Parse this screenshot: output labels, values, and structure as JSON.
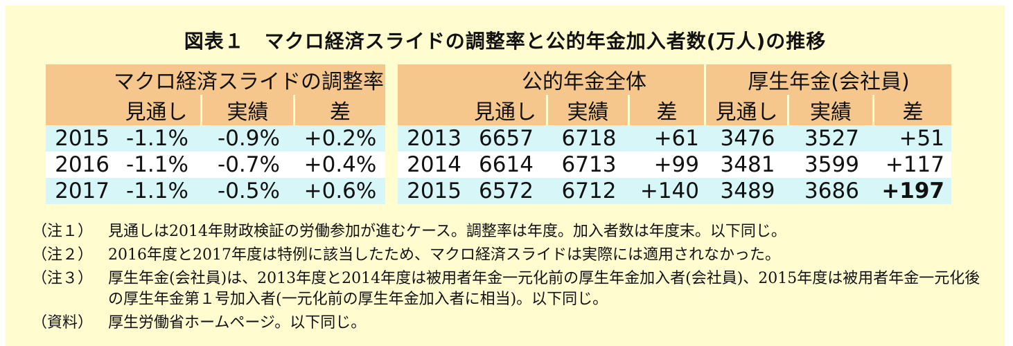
{
  "title": "図表１　マクロ経済スライドの調整率と公的年金加入者数(万人)の推移",
  "left_table": {
    "group_header": "マクロ経済スライドの調整率",
    "columns": [
      "見通し",
      "実績",
      "差"
    ],
    "rows": [
      {
        "year": "2015",
        "values": [
          "-1.1%",
          "-0.9%",
          "+0.2%"
        ]
      },
      {
        "year": "2016",
        "values": [
          "-1.1%",
          "-0.7%",
          "+0.4%"
        ]
      },
      {
        "year": "2017",
        "values": [
          "-1.1%",
          "-0.5%",
          "+0.6%"
        ]
      }
    ]
  },
  "right_table": {
    "group_headers": [
      "公的年金全体",
      "厚生年金(会社員)"
    ],
    "columns": [
      "見通し",
      "実績",
      "差",
      "見通し",
      "実績",
      "差"
    ],
    "rows": [
      {
        "year": "2013",
        "values": [
          "6657",
          "6718",
          "+61",
          "3476",
          "3527",
          "+51"
        ]
      },
      {
        "year": "2014",
        "values": [
          "6614",
          "6713",
          "+99",
          "3481",
          "3599",
          "+117"
        ]
      },
      {
        "year": "2015",
        "values": [
          "6572",
          "6712",
          "+140",
          "3489",
          "3686",
          "+197"
        ]
      }
    ]
  },
  "notes": [
    {
      "label": "（注１）",
      "text": "見通しは2014年財政検証の労働参加が進むケース。調整率は年度。加入者数は年度末。以下同じ。"
    },
    {
      "label": "（注２）",
      "text": "2016年度と2017年度は特例に該当したため、マクロ経済スライドは実際には適用されなかった。"
    },
    {
      "label": "（注３）",
      "text": "厚生年金(会社員)は、2013年度と2014年度は被用者年金一元化前の厚生年金加入者(会社員)、2015年度は被用者年金一元化後の厚生年金第１号加入者(一元化前の厚生年金加入者に相当)。以下同じ。"
    },
    {
      "label": "（資料）",
      "text": "厚生労働省ホームページ。以下同じ。"
    }
  ]
}
